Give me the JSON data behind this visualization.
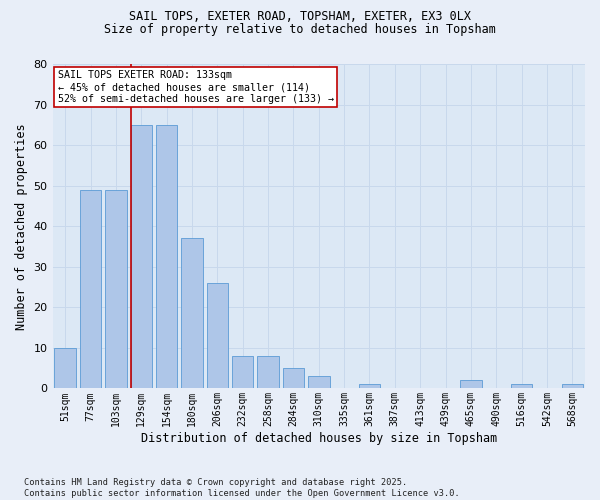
{
  "title1": "SAIL TOPS, EXETER ROAD, TOPSHAM, EXETER, EX3 0LX",
  "title2": "Size of property relative to detached houses in Topsham",
  "xlabel": "Distribution of detached houses by size in Topsham",
  "ylabel": "Number of detached properties",
  "categories": [
    "51sqm",
    "77sqm",
    "103sqm",
    "129sqm",
    "154sqm",
    "180sqm",
    "206sqm",
    "232sqm",
    "258sqm",
    "284sqm",
    "310sqm",
    "335sqm",
    "361sqm",
    "387sqm",
    "413sqm",
    "439sqm",
    "465sqm",
    "490sqm",
    "516sqm",
    "542sqm",
    "568sqm"
  ],
  "values": [
    10,
    49,
    49,
    65,
    65,
    37,
    26,
    8,
    8,
    5,
    3,
    0,
    1,
    0,
    0,
    0,
    2,
    0,
    1,
    0,
    1
  ],
  "bar_color": "#aec6e8",
  "bar_edge_color": "#5b9bd5",
  "vline_color": "#c00000",
  "vline_x": 2.575,
  "annotation_text": "SAIL TOPS EXETER ROAD: 133sqm\n← 45% of detached houses are smaller (114)\n52% of semi-detached houses are larger (133) →",
  "annotation_box_color": "#ffffff",
  "annotation_box_edge": "#c00000",
  "ylim": [
    0,
    80
  ],
  "yticks": [
    0,
    10,
    20,
    30,
    40,
    50,
    60,
    70,
    80
  ],
  "grid_color": "#c8d8ec",
  "background_color": "#dce8f5",
  "fig_background": "#e8eef8",
  "footer1": "Contains HM Land Registry data © Crown copyright and database right 2025.",
  "footer2": "Contains public sector information licensed under the Open Government Licence v3.0."
}
